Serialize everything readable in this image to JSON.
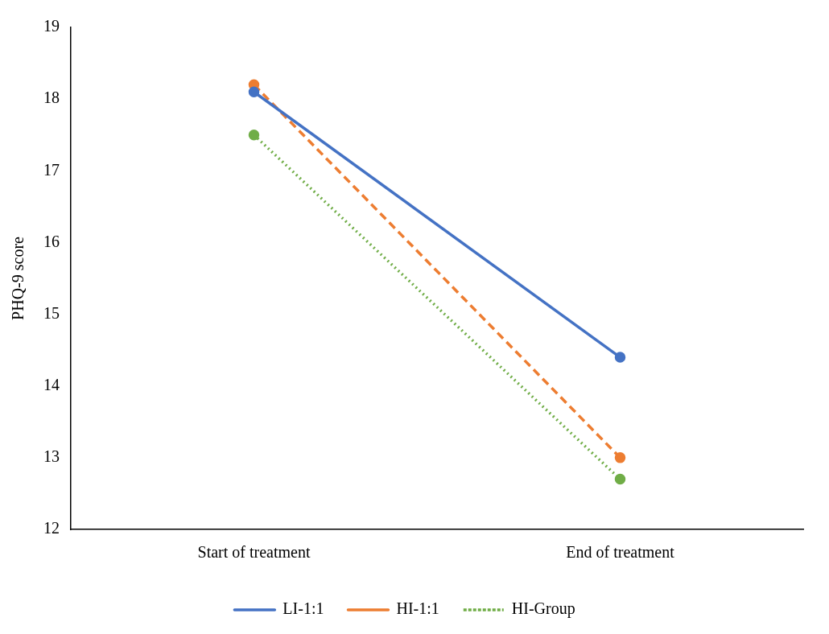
{
  "chart_data": {
    "type": "line",
    "ylabel": "PHQ-9 score",
    "categories": [
      "Start of treatment",
      "End of treatment"
    ],
    "series": [
      {
        "name": "LI-1:1",
        "color": "#4472c4",
        "values": [
          18.1,
          14.4
        ],
        "line_style": "solid"
      },
      {
        "name": "HI-1:1",
        "color": "#ed7d31",
        "values": [
          18.2,
          13.0
        ],
        "line_style": "dashed"
      },
      {
        "name": "HI-Group",
        "color": "#70ad47",
        "values": [
          17.5,
          12.7
        ],
        "line_style": "dotted"
      }
    ],
    "ylim": [
      12,
      19
    ],
    "yticks": [
      12,
      13,
      14,
      15,
      16,
      17,
      18,
      19
    ],
    "grid": false,
    "legend": "bottom",
    "marker": "circle"
  }
}
